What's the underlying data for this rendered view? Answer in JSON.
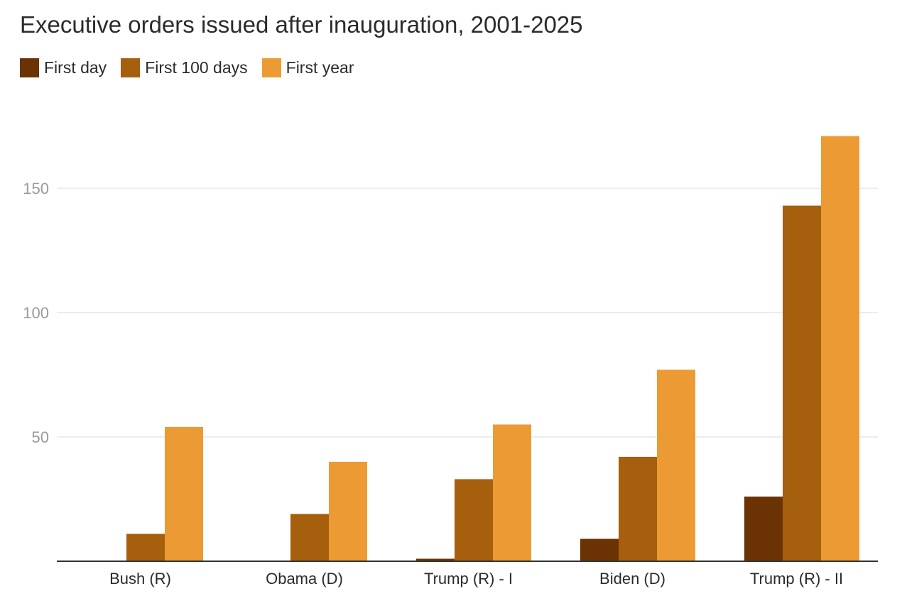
{
  "chart_data": {
    "type": "bar",
    "title": "Executive orders issued after inauguration, 2001-2025",
    "xlabel": "",
    "ylabel": "",
    "categories": [
      "Bush (R)",
      "Obama (D)",
      "Trump (R) - I",
      "Biden (D)",
      "Trump (R) - II"
    ],
    "series": [
      {
        "name": "First day",
        "color": "#6b3304",
        "values": [
          0,
          0,
          1,
          9,
          26
        ]
      },
      {
        "name": "First 100 days",
        "color": "#a55f0d",
        "values": [
          11,
          19,
          33,
          42,
          143
        ]
      },
      {
        "name": "First year",
        "color": "#ec9b34",
        "values": [
          54,
          40,
          55,
          77,
          171
        ]
      }
    ],
    "ylim": [
      0,
      175
    ],
    "yticks": [
      50,
      100,
      150
    ],
    "grid": true,
    "legend_position": "top-left",
    "colors": {
      "grid": "#e6e6e6",
      "axis": "#333333",
      "tick_label": "#9a9a9a"
    }
  }
}
